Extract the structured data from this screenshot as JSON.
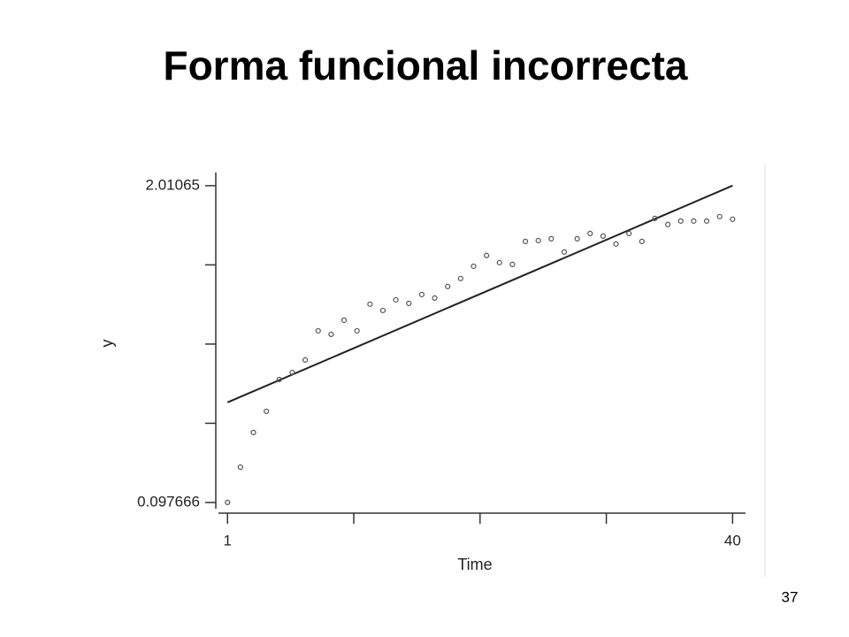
{
  "chart_data": {
    "type": "scatter",
    "title": "Forma funcional incorrecta",
    "x_label": "Time",
    "y_label": "y",
    "x": [
      1,
      2,
      3,
      4,
      5,
      6,
      7,
      8,
      9,
      10,
      11,
      12,
      13,
      14,
      15,
      16,
      17,
      18,
      19,
      20,
      21,
      22,
      23,
      24,
      25,
      26,
      27,
      28,
      29,
      30,
      31,
      32,
      33,
      34,
      35,
      36,
      37,
      38,
      39,
      40
    ],
    "values": [
      0.098,
      0.311,
      0.52,
      0.648,
      0.84,
      0.883,
      0.958,
      1.134,
      1.113,
      1.198,
      1.134,
      1.295,
      1.257,
      1.321,
      1.3,
      1.353,
      1.332,
      1.402,
      1.45,
      1.524,
      1.589,
      1.546,
      1.535,
      1.674,
      1.679,
      1.69,
      1.61,
      1.69,
      1.722,
      1.706,
      1.658,
      1.722,
      1.674,
      1.813,
      1.776,
      1.797,
      1.797,
      1.797,
      1.824,
      1.808
    ],
    "color": "#555555",
    "fit": {
      "x": [
        1,
        40
      ],
      "values": [
        0.702,
        2.01065
      ],
      "color": "#222222"
    },
    "xlim": [
      0.3,
      41
    ],
    "xticks": [
      1,
      40
    ],
    "xminor_ticks": [
      10.75,
      20.5,
      30.25
    ],
    "ylim": [
      0.06,
      2.09
    ],
    "yticks": [
      0.097666,
      2.01065
    ],
    "yminor_ticks": [
      0.575912,
      1.054158,
      1.532404
    ]
  },
  "page_number": "37"
}
